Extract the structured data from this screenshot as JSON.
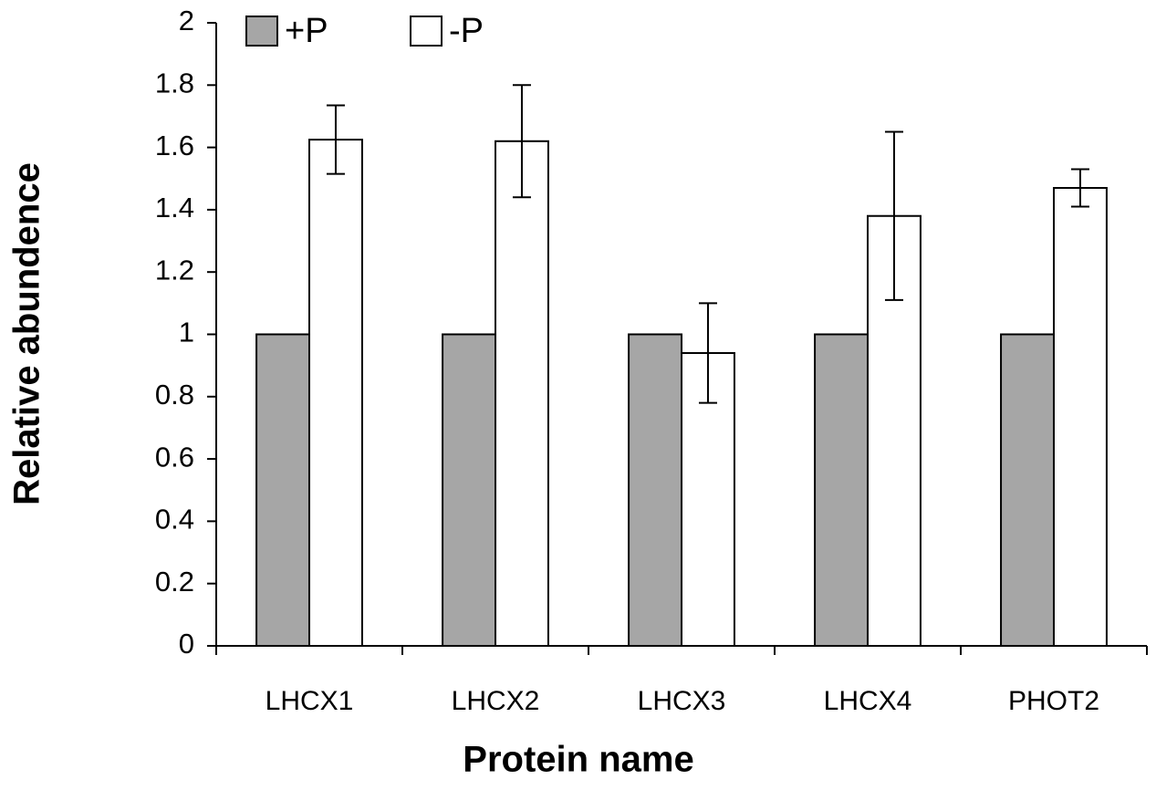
{
  "chart_data": {
    "type": "bar",
    "x_label": "Protein name",
    "y_label": "Relative abundence",
    "categories": [
      "LHCX1",
      "LHCX2",
      "LHCX3",
      "LHCX4",
      "PHOT2"
    ],
    "series": [
      {
        "name": "+P",
        "color": "#a6a6a6",
        "values": [
          1,
          1,
          1,
          1,
          1
        ]
      },
      {
        "name": "-P",
        "color": "#ffffff",
        "values": [
          1.625,
          1.62,
          0.94,
          1.38,
          1.47
        ],
        "errors": [
          0.11,
          0.18,
          0.16,
          0.27,
          0.06
        ]
      }
    ],
    "ylim": [
      0,
      2
    ],
    "yticks": [
      0,
      0.2,
      0.4,
      0.6,
      0.8,
      1,
      1.2,
      1.4,
      1.6,
      1.8,
      2
    ],
    "grid": false,
    "legend_position": "top-left"
  }
}
